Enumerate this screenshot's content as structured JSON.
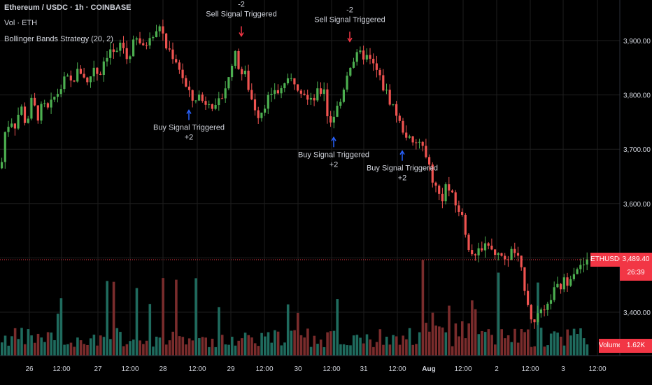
{
  "legend": {
    "title": "Ethereum / USDC · 1h · COINBASE",
    "volume": "Vol · ETH",
    "strategy": "Bollinger Bands Strategy (20, 2)"
  },
  "colors": {
    "up": "#4caf50",
    "down": "#ef5350",
    "vol_up": "#1f6b5e",
    "vol_down": "#7a2c2c",
    "grid": "#1e1e1e",
    "axis_text": "#d1d4dc",
    "buy_arrow": "#2962ff",
    "sell_arrow": "#f23645",
    "price_line": "#f23645"
  },
  "price_axis": {
    "ticks": [
      "3,900.00",
      "3,800.00",
      "3,700.00",
      "3,600.00",
      "3,400.00"
    ],
    "current_symbol": "ETHUSDC",
    "current_price": "3,489.40",
    "countdown": "26:39"
  },
  "volume_label": {
    "name": "Volume",
    "value": "1.62K"
  },
  "time_axis": {
    "ticks": [
      "26",
      "12:00",
      "27",
      "12:00",
      "28",
      "12:00",
      "29",
      "12:00",
      "30",
      "12:00",
      "31",
      "12:00",
      "Aug",
      "12:00",
      "2",
      "12:00",
      "3",
      "12:00"
    ]
  },
  "chart_data": {
    "type": "candlestick",
    "symbol": "Ethereum / USDC",
    "interval": "1h",
    "exchange": "COINBASE",
    "ylim": [
      3350,
      3960
    ],
    "close_path": [
      [
        0,
        3665
      ],
      [
        6,
        3735
      ],
      [
        14,
        3755
      ],
      [
        20,
        3745
      ],
      [
        28,
        3780
      ],
      [
        36,
        3745
      ],
      [
        44,
        3790
      ],
      [
        52,
        3760
      ],
      [
        60,
        3780
      ],
      [
        68,
        3770
      ],
      [
        76,
        3795
      ],
      [
        84,
        3810
      ],
      [
        92,
        3830
      ],
      [
        100,
        3822
      ],
      [
        108,
        3840
      ],
      [
        116,
        3845
      ],
      [
        124,
        3818
      ],
      [
        132,
        3855
      ],
      [
        140,
        3835
      ],
      [
        148,
        3870
      ],
      [
        156,
        3885
      ],
      [
        164,
        3868
      ],
      [
        172,
        3900
      ],
      [
        180,
        3865
      ],
      [
        188,
        3890
      ],
      [
        196,
        3905
      ],
      [
        204,
        3880
      ],
      [
        212,
        3915
      ],
      [
        220,
        3905
      ],
      [
        228,
        3935
      ],
      [
        234,
        3890
      ],
      [
        242,
        3880
      ],
      [
        250,
        3865
      ],
      [
        258,
        3840
      ],
      [
        266,
        3805
      ],
      [
        274,
        3790
      ],
      [
        282,
        3800
      ],
      [
        290,
        3785
      ],
      [
        298,
        3795
      ],
      [
        306,
        3770
      ],
      [
        314,
        3790
      ],
      [
        320,
        3815
      ],
      [
        326,
        3830
      ],
      [
        332,
        3880
      ],
      [
        338,
        3860
      ],
      [
        344,
        3840
      ],
      [
        350,
        3835
      ],
      [
        356,
        3800
      ],
      [
        362,
        3780
      ],
      [
        368,
        3765
      ],
      [
        374,
        3775
      ],
      [
        380,
        3795
      ],
      [
        386,
        3790
      ],
      [
        392,
        3815
      ],
      [
        398,
        3800
      ],
      [
        404,
        3825
      ],
      [
        410,
        3820
      ],
      [
        418,
        3830
      ],
      [
        426,
        3815
      ],
      [
        432,
        3810
      ],
      [
        438,
        3790
      ],
      [
        444,
        3785
      ],
      [
        450,
        3800
      ],
      [
        456,
        3805
      ],
      [
        462,
        3815
      ],
      [
        468,
        3745
      ],
      [
        474,
        3760
      ],
      [
        480,
        3775
      ],
      [
        486,
        3790
      ],
      [
        492,
        3830
      ],
      [
        498,
        3855
      ],
      [
        504,
        3865
      ],
      [
        510,
        3870
      ],
      [
        516,
        3875
      ],
      [
        522,
        3870
      ],
      [
        528,
        3860
      ],
      [
        534,
        3850
      ],
      [
        540,
        3835
      ],
      [
        546,
        3815
      ],
      [
        552,
        3800
      ],
      [
        558,
        3785
      ],
      [
        564,
        3770
      ],
      [
        570,
        3745
      ],
      [
        576,
        3735
      ],
      [
        582,
        3720
      ],
      [
        588,
        3705
      ],
      [
        594,
        3710
      ],
      [
        600,
        3715
      ],
      [
        606,
        3685
      ],
      [
        612,
        3670
      ],
      [
        618,
        3640
      ],
      [
        624,
        3620
      ],
      [
        630,
        3610
      ],
      [
        636,
        3635
      ],
      [
        642,
        3620
      ],
      [
        648,
        3600
      ],
      [
        654,
        3590
      ],
      [
        660,
        3570
      ],
      [
        666,
        3535
      ],
      [
        672,
        3510
      ],
      [
        678,
        3495
      ],
      [
        684,
        3520
      ],
      [
        690,
        3525
      ],
      [
        696,
        3530
      ],
      [
        702,
        3510
      ],
      [
        708,
        3500
      ],
      [
        714,
        3510
      ],
      [
        720,
        3490
      ],
      [
        726,
        3505
      ],
      [
        732,
        3515
      ],
      [
        738,
        3500
      ],
      [
        744,
        3470
      ],
      [
        750,
        3440
      ],
      [
        756,
        3400
      ],
      [
        762,
        3375
      ],
      [
        768,
        3410
      ],
      [
        774,
        3390
      ],
      [
        780,
        3400
      ],
      [
        786,
        3430
      ],
      [
        792,
        3440
      ],
      [
        798,
        3445
      ],
      [
        804,
        3455
      ],
      [
        810,
        3460
      ],
      [
        816,
        3475
      ],
      [
        822,
        3485
      ],
      [
        828,
        3480
      ],
      [
        834,
        3490
      ],
      [
        840,
        3489
      ]
    ],
    "signals": [
      {
        "type": "buy",
        "text": "Buy Signal Triggered",
        "qty": "+2",
        "x": 270,
        "price": 3795
      },
      {
        "type": "sell",
        "text": "Sell Signal Triggered",
        "qty": "-2",
        "x": 345,
        "price": 3880
      },
      {
        "type": "buy",
        "text": "Buy Signal Triggered",
        "qty": "+2",
        "x": 477,
        "price": 3745
      },
      {
        "type": "sell",
        "text": "Sell Signal Triggered",
        "qty": "-2",
        "x": 500,
        "price": 3870
      },
      {
        "type": "buy",
        "text": "Buy Signal Triggered",
        "qty": "+2",
        "x": 575,
        "price": 3720
      }
    ]
  }
}
